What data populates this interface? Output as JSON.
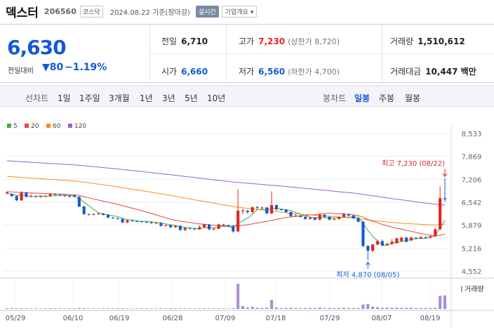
{
  "header": {
    "name": "덱스터",
    "code": "206560",
    "market": "코스닥",
    "date": "2024.08.22 기준(장마감)",
    "realtime_label": "실시간",
    "info_label": "기업개요 ▾"
  },
  "quote": {
    "price": "6,630",
    "change_label": "전일대비",
    "change": "▼80",
    "change_pct": "−1.19%",
    "prev_close_label": "전일",
    "prev_close": "6,710",
    "high_label": "고가",
    "high": "7,230",
    "upper_limit": "(상한가 8,720)",
    "volume_label": "거래량",
    "volume": "1,510,612",
    "open_label": "시가",
    "open": "6,660",
    "low_label": "저가",
    "low": "6,560",
    "lower_limit": "(하한가 4,700)",
    "amount_label": "거래대금",
    "amount": "10,447 백만"
  },
  "tabs": {
    "line_label": "선차트",
    "line_periods": [
      "1일",
      "1주일",
      "3개월",
      "1년",
      "3년",
      "5년",
      "10년"
    ],
    "candle_label": "봉차트",
    "candle_periods": [
      "일봉",
      "주봉",
      "월봉"
    ],
    "selected_candle": "일봉"
  },
  "colors": {
    "up": "#e22222",
    "down": "#1558d6",
    "ma5": "#3cb43c",
    "ma20": "#e64646",
    "ma60": "#ff8c1a",
    "ma120": "#9b5fd6"
  },
  "chart_data": {
    "type": "candlestick",
    "ylim": [
      4552,
      8533
    ],
    "yticks": [
      "8,533",
      "7,869",
      "7,206",
      "6,542",
      "5,879",
      "5,216",
      "4,552"
    ],
    "xticks": [
      "05/29",
      "06/10",
      "06/19",
      "06/28",
      "07/09",
      "07/18",
      "07/29",
      "08/07",
      "08/19"
    ],
    "legend": [
      "5",
      "20",
      "60",
      "120"
    ],
    "volume_label": "거래량",
    "annotations": {
      "high": "최고 7,230 (08/22)",
      "low": "최저 4,870 (08/05)"
    },
    "candles": [
      {
        "o": 6800,
        "c": 6830,
        "h": 6860,
        "l": 6780
      },
      {
        "o": 6780,
        "c": 6720,
        "h": 6800,
        "l": 6700
      },
      {
        "o": 6720,
        "c": 6600,
        "h": 6740,
        "l": 6580
      },
      {
        "o": 6600,
        "c": 6820,
        "h": 6860,
        "l": 6580
      },
      {
        "o": 6820,
        "c": 6700,
        "h": 6840,
        "l": 6680
      },
      {
        "o": 6700,
        "c": 6720,
        "h": 6780,
        "l": 6680
      },
      {
        "o": 6720,
        "c": 6700,
        "h": 6740,
        "l": 6680
      },
      {
        "o": 6700,
        "c": 6710,
        "h": 6730,
        "l": 6690
      },
      {
        "o": 6710,
        "c": 6720,
        "h": 6760,
        "l": 6700
      },
      {
        "o": 6720,
        "c": 6780,
        "h": 6800,
        "l": 6700
      },
      {
        "o": 6780,
        "c": 6760,
        "h": 6800,
        "l": 6740
      },
      {
        "o": 6760,
        "c": 6740,
        "h": 6780,
        "l": 6720
      },
      {
        "o": 6740,
        "c": 6720,
        "h": 6760,
        "l": 6700
      },
      {
        "o": 6720,
        "c": 6700,
        "h": 6740,
        "l": 6680
      },
      {
        "o": 6740,
        "c": 6700,
        "h": 6760,
        "l": 6680
      },
      {
        "o": 6700,
        "c": 6420,
        "h": 6720,
        "l": 6400
      },
      {
        "o": 6420,
        "c": 6200,
        "h": 6440,
        "l": 6180
      },
      {
        "o": 6200,
        "c": 6180,
        "h": 6220,
        "l": 6160
      },
      {
        "o": 6180,
        "c": 6200,
        "h": 6220,
        "l": 6160
      },
      {
        "o": 6200,
        "c": 6220,
        "h": 6240,
        "l": 6180
      },
      {
        "o": 6220,
        "c": 6180,
        "h": 6240,
        "l": 6160
      },
      {
        "o": 6180,
        "c": 6100,
        "h": 6200,
        "l": 6080
      },
      {
        "o": 6100,
        "c": 6080,
        "h": 6120,
        "l": 6060
      },
      {
        "o": 6080,
        "c": 6060,
        "h": 6100,
        "l": 6040
      },
      {
        "o": 6060,
        "c": 5960,
        "h": 6080,
        "l": 5940
      },
      {
        "o": 5960,
        "c": 6020,
        "h": 6040,
        "l": 5940
      },
      {
        "o": 6020,
        "c": 6000,
        "h": 6040,
        "l": 5980
      },
      {
        "o": 6000,
        "c": 5990,
        "h": 6020,
        "l": 5970
      },
      {
        "o": 5990,
        "c": 5980,
        "h": 6010,
        "l": 5960
      },
      {
        "o": 5980,
        "c": 5960,
        "h": 6000,
        "l": 5940
      },
      {
        "o": 5960,
        "c": 5940,
        "h": 5980,
        "l": 5920
      },
      {
        "o": 5940,
        "c": 5950,
        "h": 5970,
        "l": 5920
      },
      {
        "o": 5950,
        "c": 5860,
        "h": 5970,
        "l": 5840
      },
      {
        "o": 5860,
        "c": 5880,
        "h": 5900,
        "l": 5840
      },
      {
        "o": 5880,
        "c": 5820,
        "h": 5900,
        "l": 5800
      },
      {
        "o": 5820,
        "c": 5860,
        "h": 5880,
        "l": 5800
      },
      {
        "o": 5860,
        "c": 5740,
        "h": 5880,
        "l": 5720
      },
      {
        "o": 5740,
        "c": 5800,
        "h": 5820,
        "l": 5720
      },
      {
        "o": 5800,
        "c": 5780,
        "h": 5820,
        "l": 5760
      },
      {
        "o": 5780,
        "c": 5760,
        "h": 5800,
        "l": 5740
      },
      {
        "o": 5760,
        "c": 5820,
        "h": 5880,
        "l": 5740
      },
      {
        "o": 5820,
        "c": 5900,
        "h": 5920,
        "l": 5800
      },
      {
        "o": 5900,
        "c": 5760,
        "h": 5920,
        "l": 5740
      },
      {
        "o": 5760,
        "c": 5780,
        "h": 5800,
        "l": 5720
      },
      {
        "o": 5780,
        "c": 5900,
        "h": 5920,
        "l": 5760
      },
      {
        "o": 5900,
        "c": 5880,
        "h": 5920,
        "l": 5860
      },
      {
        "o": 5880,
        "c": 5860,
        "h": 5900,
        "l": 5840
      },
      {
        "o": 5860,
        "c": 5700,
        "h": 5880,
        "l": 5660
      },
      {
        "o": 5700,
        "c": 6300,
        "h": 6920,
        "l": 5680
      },
      {
        "o": 6300,
        "c": 6300,
        "h": 6360,
        "l": 6200
      },
      {
        "o": 6300,
        "c": 6260,
        "h": 6320,
        "l": 6200
      },
      {
        "o": 6260,
        "c": 6400,
        "h": 6420,
        "l": 6220
      },
      {
        "o": 6400,
        "c": 6380,
        "h": 6440,
        "l": 6340
      },
      {
        "o": 6380,
        "c": 6390,
        "h": 6420,
        "l": 6360
      },
      {
        "o": 6390,
        "c": 6220,
        "h": 6400,
        "l": 6200
      },
      {
        "o": 6220,
        "c": 6460,
        "h": 6860,
        "l": 6200
      },
      {
        "o": 6460,
        "c": 6340,
        "h": 6480,
        "l": 6300
      },
      {
        "o": 6340,
        "c": 6330,
        "h": 6360,
        "l": 6300
      },
      {
        "o": 6330,
        "c": 6260,
        "h": 6360,
        "l": 6240
      },
      {
        "o": 6260,
        "c": 6140,
        "h": 6280,
        "l": 6120
      },
      {
        "o": 6140,
        "c": 6160,
        "h": 6200,
        "l": 6120
      },
      {
        "o": 6160,
        "c": 6120,
        "h": 6180,
        "l": 6100
      },
      {
        "o": 6120,
        "c": 6060,
        "h": 6140,
        "l": 6040
      },
      {
        "o": 6060,
        "c": 6100,
        "h": 6120,
        "l": 6040
      },
      {
        "o": 6100,
        "c": 6040,
        "h": 6120,
        "l": 6020
      },
      {
        "o": 6040,
        "c": 6180,
        "h": 6220,
        "l": 6020
      },
      {
        "o": 6180,
        "c": 6120,
        "h": 6200,
        "l": 6100
      },
      {
        "o": 6120,
        "c": 6040,
        "h": 6140,
        "l": 6020
      },
      {
        "o": 6040,
        "c": 6060,
        "h": 6080,
        "l": 6020
      },
      {
        "o": 6060,
        "c": 6120,
        "h": 6140,
        "l": 6040
      },
      {
        "o": 6120,
        "c": 6200,
        "h": 6240,
        "l": 6100
      },
      {
        "o": 6200,
        "c": 6160,
        "h": 6220,
        "l": 6140
      },
      {
        "o": 6160,
        "c": 6080,
        "h": 6180,
        "l": 6060
      },
      {
        "o": 6080,
        "c": 5980,
        "h": 6100,
        "l": 5960
      },
      {
        "o": 5980,
        "c": 5280,
        "h": 6000,
        "l": 5240
      },
      {
        "o": 5280,
        "c": 5140,
        "h": 5300,
        "l": 4870
      },
      {
        "o": 5140,
        "c": 5320,
        "h": 5340,
        "l": 5100
      },
      {
        "o": 5320,
        "c": 5420,
        "h": 5460,
        "l": 5300
      },
      {
        "o": 5420,
        "c": 5300,
        "h": 5460,
        "l": 5260
      },
      {
        "o": 5300,
        "c": 5340,
        "h": 5380,
        "l": 5280
      },
      {
        "o": 5340,
        "c": 5400,
        "h": 5480,
        "l": 5300
      },
      {
        "o": 5360,
        "c": 5500,
        "h": 5520,
        "l": 5340
      },
      {
        "o": 5420,
        "c": 5520,
        "h": 5540,
        "l": 5400
      },
      {
        "o": 5520,
        "c": 5400,
        "h": 5540,
        "l": 5380
      },
      {
        "o": 5440,
        "c": 5520,
        "h": 5560,
        "l": 5420
      },
      {
        "o": 5520,
        "c": 5500,
        "h": 5540,
        "l": 5480
      },
      {
        "o": 5500,
        "c": 5540,
        "h": 5560,
        "l": 5480
      },
      {
        "o": 5540,
        "c": 5520,
        "h": 5560,
        "l": 5500
      },
      {
        "o": 5520,
        "c": 5560,
        "h": 5580,
        "l": 5500
      },
      {
        "o": 5560,
        "c": 5760,
        "h": 5800,
        "l": 5540
      },
      {
        "o": 5760,
        "c": 6660,
        "h": 7000,
        "l": 5740
      },
      {
        "o": 6660,
        "c": 6630,
        "h": 7230,
        "l": 6560
      }
    ],
    "volumes": [
      30,
      28,
      25,
      26,
      24,
      22,
      20,
      22,
      20,
      28,
      26,
      22,
      20,
      22,
      24,
      40,
      30,
      22,
      20,
      18,
      22,
      24,
      20,
      22,
      26,
      20,
      18,
      20,
      22,
      20,
      22,
      18,
      24,
      20,
      22,
      22,
      26,
      22,
      20,
      20,
      24,
      26,
      22,
      20,
      24,
      22,
      20,
      30,
      1000,
      120,
      60,
      90,
      50,
      40,
      50,
      360,
      60,
      40,
      40,
      50,
      40,
      35,
      40,
      40,
      38,
      60,
      40,
      40,
      35,
      40,
      50,
      40,
      40,
      40,
      180,
      200,
      100,
      70,
      50,
      60,
      50,
      55,
      50,
      45,
      50,
      40,
      45,
      42,
      40,
      50,
      520,
      540
    ]
  }
}
